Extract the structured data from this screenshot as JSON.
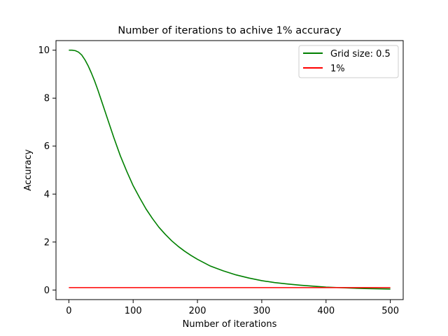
{
  "chart_data": {
    "type": "line",
    "title": "Number of iterations to achive 1% accuracy",
    "xlabel": "Number of iterations",
    "ylabel": "Accuracy",
    "xlim": [
      -20,
      520
    ],
    "ylim": [
      -0.4,
      10.4
    ],
    "xticks": [
      0,
      100,
      200,
      300,
      400,
      500
    ],
    "yticks": [
      0,
      2,
      4,
      6,
      8,
      10
    ],
    "grid": false,
    "legend_position": "top-right",
    "series": [
      {
        "name": "Grid size: 0.5",
        "color": "#008000",
        "x": [
          0,
          5,
          10,
          15,
          20,
          25,
          30,
          35,
          40,
          45,
          50,
          55,
          60,
          70,
          80,
          90,
          100,
          110,
          120,
          130,
          140,
          150,
          160,
          170,
          180,
          190,
          200,
          220,
          240,
          260,
          280,
          300,
          320,
          340,
          360,
          380,
          400,
          420,
          440,
          460,
          480,
          500
        ],
        "y": [
          10.0,
          10.0,
          9.98,
          9.92,
          9.8,
          9.6,
          9.35,
          9.05,
          8.72,
          8.35,
          7.95,
          7.55,
          7.15,
          6.35,
          5.6,
          4.95,
          4.35,
          3.85,
          3.38,
          2.98,
          2.62,
          2.32,
          2.05,
          1.82,
          1.62,
          1.44,
          1.28,
          1.0,
          0.8,
          0.63,
          0.5,
          0.39,
          0.31,
          0.25,
          0.2,
          0.16,
          0.12,
          0.1,
          0.08,
          0.06,
          0.05,
          0.04
        ]
      },
      {
        "name": "1%",
        "color": "#ff0000",
        "x": [
          0,
          500
        ],
        "y": [
          0.1,
          0.1
        ]
      }
    ]
  }
}
